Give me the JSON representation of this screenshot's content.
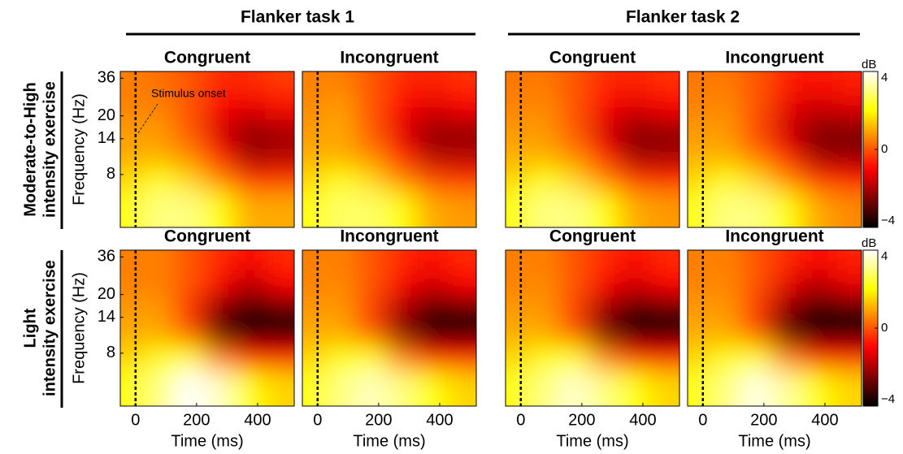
{
  "figure": {
    "column_groups": [
      "Flanker task 1",
      "Flanker task 2"
    ],
    "row_labels": [
      [
        "Moderate-to-High",
        "intensity exercise"
      ],
      [
        "Light",
        "intensity exercise"
      ]
    ]
  },
  "chart_data": [
    {
      "type": "heatmap",
      "title": "Congruent",
      "ylabel": "Frequency (Hz)",
      "log_y": true,
      "x": [
        -25,
        75,
        175,
        275,
        375,
        475
      ],
      "y": [
        36,
        24,
        16,
        11,
        7.5,
        5
      ],
      "z": [
        [
          0.5,
          0.3,
          0,
          -0.5,
          -0.5,
          -0.3
        ],
        [
          0.5,
          0.5,
          0,
          -1,
          -1.2,
          -0.8
        ],
        [
          0.8,
          0.8,
          0,
          -1.5,
          -2.3,
          -2
        ],
        [
          1,
          1,
          0.5,
          -1,
          -2.3,
          -2
        ],
        [
          1.5,
          2,
          1.5,
          0.5,
          -0.5,
          -0.5
        ],
        [
          2,
          3,
          3,
          2,
          1,
          1
        ]
      ],
      "xlim": [
        -50,
        520
      ],
      "ylim": [
        3.5,
        40
      ],
      "yticks": [
        8,
        14,
        20,
        36
      ],
      "onset_line": 0,
      "annotation": "Stimulus onset"
    },
    {
      "type": "heatmap",
      "title": "Incongruent",
      "log_y": true,
      "x": [
        -25,
        75,
        175,
        275,
        375,
        475
      ],
      "y": [
        36,
        24,
        16,
        11,
        7.5,
        5
      ],
      "z": [
        [
          0.5,
          0.5,
          0,
          -0.5,
          -0.6,
          -0.4
        ],
        [
          0.6,
          0.8,
          0,
          -1,
          -1.3,
          -1
        ],
        [
          0.8,
          1,
          0,
          -1.3,
          -2.3,
          -2.2
        ],
        [
          1,
          1,
          0.5,
          -0.8,
          -2,
          -2
        ],
        [
          1.5,
          2,
          1.5,
          0.5,
          -0.3,
          -0.5
        ],
        [
          2,
          2.8,
          2.8,
          2,
          1,
          0.8
        ]
      ],
      "xlim": [
        -50,
        520
      ],
      "ylim": [
        3.5,
        40
      ],
      "onset_line": 0
    },
    {
      "type": "heatmap",
      "title": "Congruent",
      "log_y": true,
      "x": [
        -25,
        75,
        175,
        275,
        375,
        475
      ],
      "y": [
        36,
        24,
        16,
        11,
        7.5,
        5
      ],
      "z": [
        [
          0.4,
          0.4,
          0,
          -0.5,
          -0.6,
          -0.4
        ],
        [
          0.5,
          0.6,
          0,
          -1,
          -1.3,
          -1
        ],
        [
          0.8,
          0.8,
          0,
          -1.5,
          -2.4,
          -2.2
        ],
        [
          1,
          1,
          0.5,
          -1,
          -2.3,
          -2.2
        ],
        [
          1.5,
          2,
          1.5,
          0.5,
          -0.5,
          -0.6
        ],
        [
          2,
          3,
          3,
          2,
          1,
          0.8
        ]
      ],
      "xlim": [
        -50,
        520
      ],
      "ylim": [
        3.5,
        40
      ],
      "onset_line": 0
    },
    {
      "type": "heatmap",
      "title": "Incongruent",
      "log_y": true,
      "x": [
        -25,
        75,
        175,
        275,
        375,
        475
      ],
      "y": [
        36,
        24,
        16,
        11,
        7.5,
        5
      ],
      "z": [
        [
          0.4,
          0.4,
          0,
          -0.6,
          -0.8,
          -0.6
        ],
        [
          0.5,
          0.6,
          0,
          -1.2,
          -1.5,
          -1.3
        ],
        [
          0.8,
          0.8,
          -0.2,
          -1.6,
          -2.5,
          -2.5
        ],
        [
          1,
          1,
          0.3,
          -1,
          -2.3,
          -2.4
        ],
        [
          1.5,
          2,
          1.5,
          0.5,
          -0.5,
          -0.8
        ],
        [
          2,
          3,
          3,
          2,
          1,
          0.6
        ]
      ],
      "xlim": [
        -50,
        520
      ],
      "ylim": [
        3.5,
        40
      ],
      "onset_line": 0,
      "colorbar": {
        "title": "dB",
        "lim": [
          -4,
          4
        ],
        "ticks": [
          4,
          0,
          {
            "value": -4,
            "label": "−4"
          }
        ]
      }
    },
    {
      "type": "heatmap",
      "title": "Congruent",
      "ylabel": "Frequency (Hz)",
      "xlabel": "Time (ms)",
      "log_y": true,
      "x": [
        -25,
        75,
        175,
        275,
        375,
        475
      ],
      "y": [
        36,
        24,
        16,
        11,
        7.5,
        5
      ],
      "z": [
        [
          0.5,
          0.5,
          0,
          -0.5,
          -1,
          -0.5
        ],
        [
          0.5,
          0.5,
          0,
          -1,
          -1.8,
          -1
        ],
        [
          0.8,
          0.8,
          -0.5,
          -2.5,
          -3.5,
          -3
        ],
        [
          1,
          1,
          0,
          -3,
          -4,
          -4
        ],
        [
          1.5,
          2,
          2,
          0.5,
          -1,
          -1
        ],
        [
          2,
          3,
          4,
          3.5,
          2,
          1.5
        ]
      ],
      "xlim": [
        -50,
        520
      ],
      "ylim": [
        3.5,
        40
      ],
      "xticks": [
        0,
        200,
        400
      ],
      "yticks": [
        8,
        14,
        20,
        36
      ],
      "onset_line": 0
    },
    {
      "type": "heatmap",
      "title": "Incongruent",
      "xlabel": "Time (ms)",
      "log_y": true,
      "x": [
        -25,
        75,
        175,
        275,
        375,
        475
      ],
      "y": [
        36,
        24,
        16,
        11,
        7.5,
        5
      ],
      "z": [
        [
          0.5,
          0.5,
          0,
          -0.5,
          -0.8,
          -0.5
        ],
        [
          0.5,
          0.6,
          0,
          -1,
          -1.5,
          -1
        ],
        [
          0.8,
          0.8,
          -0.3,
          -2,
          -3.2,
          -3
        ],
        [
          1,
          1,
          0,
          -2.5,
          -3.8,
          -3.8
        ],
        [
          1.5,
          2,
          2,
          0.5,
          -0.8,
          -1
        ],
        [
          2,
          3,
          3.5,
          3,
          2,
          1.5
        ]
      ],
      "xlim": [
        -50,
        520
      ],
      "ylim": [
        3.5,
        40
      ],
      "xticks": [
        0,
        200,
        400
      ],
      "onset_line": 0
    },
    {
      "type": "heatmap",
      "title": "Congruent",
      "xlabel": "Time (ms)",
      "log_y": true,
      "x": [
        -25,
        75,
        175,
        275,
        375,
        475
      ],
      "y": [
        36,
        24,
        16,
        11,
        7.5,
        5
      ],
      "z": [
        [
          0.5,
          0.5,
          0,
          -0.5,
          -0.8,
          -0.5
        ],
        [
          0.5,
          0.6,
          0,
          -1,
          -1.5,
          -1
        ],
        [
          0.8,
          0.8,
          -0.3,
          -2.2,
          -3.3,
          -3
        ],
        [
          1,
          1,
          0,
          -2.8,
          -3.9,
          -3.8
        ],
        [
          1.5,
          2,
          2,
          0.5,
          -0.8,
          -1
        ],
        [
          2,
          3,
          3.6,
          3,
          2,
          1.5
        ]
      ],
      "xlim": [
        -50,
        520
      ],
      "ylim": [
        3.5,
        40
      ],
      "xticks": [
        0,
        200,
        400
      ],
      "onset_line": 0
    },
    {
      "type": "heatmap",
      "title": "Incongruent",
      "xlabel": "Time (ms)",
      "log_y": true,
      "x": [
        -25,
        75,
        175,
        275,
        375,
        475
      ],
      "y": [
        36,
        24,
        16,
        11,
        7.5,
        5
      ],
      "z": [
        [
          0.5,
          0.5,
          0,
          -0.5,
          -1,
          -0.6
        ],
        [
          0.5,
          0.6,
          0,
          -1.2,
          -1.8,
          -1.2
        ],
        [
          0.8,
          0.8,
          -0.4,
          -2.4,
          -3.5,
          -3.2
        ],
        [
          1,
          1,
          0,
          -3,
          -4,
          -4
        ],
        [
          1.5,
          2,
          2,
          0.5,
          -1,
          -1
        ],
        [
          2,
          3,
          3.8,
          3.2,
          2,
          1.5
        ]
      ],
      "xlim": [
        -50,
        520
      ],
      "ylim": [
        3.5,
        40
      ],
      "xticks": [
        0,
        200,
        400
      ],
      "onset_line": 0,
      "colorbar": {
        "title": "dB",
        "lim": [
          -4,
          4
        ],
        "ticks": [
          4,
          0,
          {
            "value": -4,
            "label": "−4"
          }
        ]
      }
    }
  ]
}
